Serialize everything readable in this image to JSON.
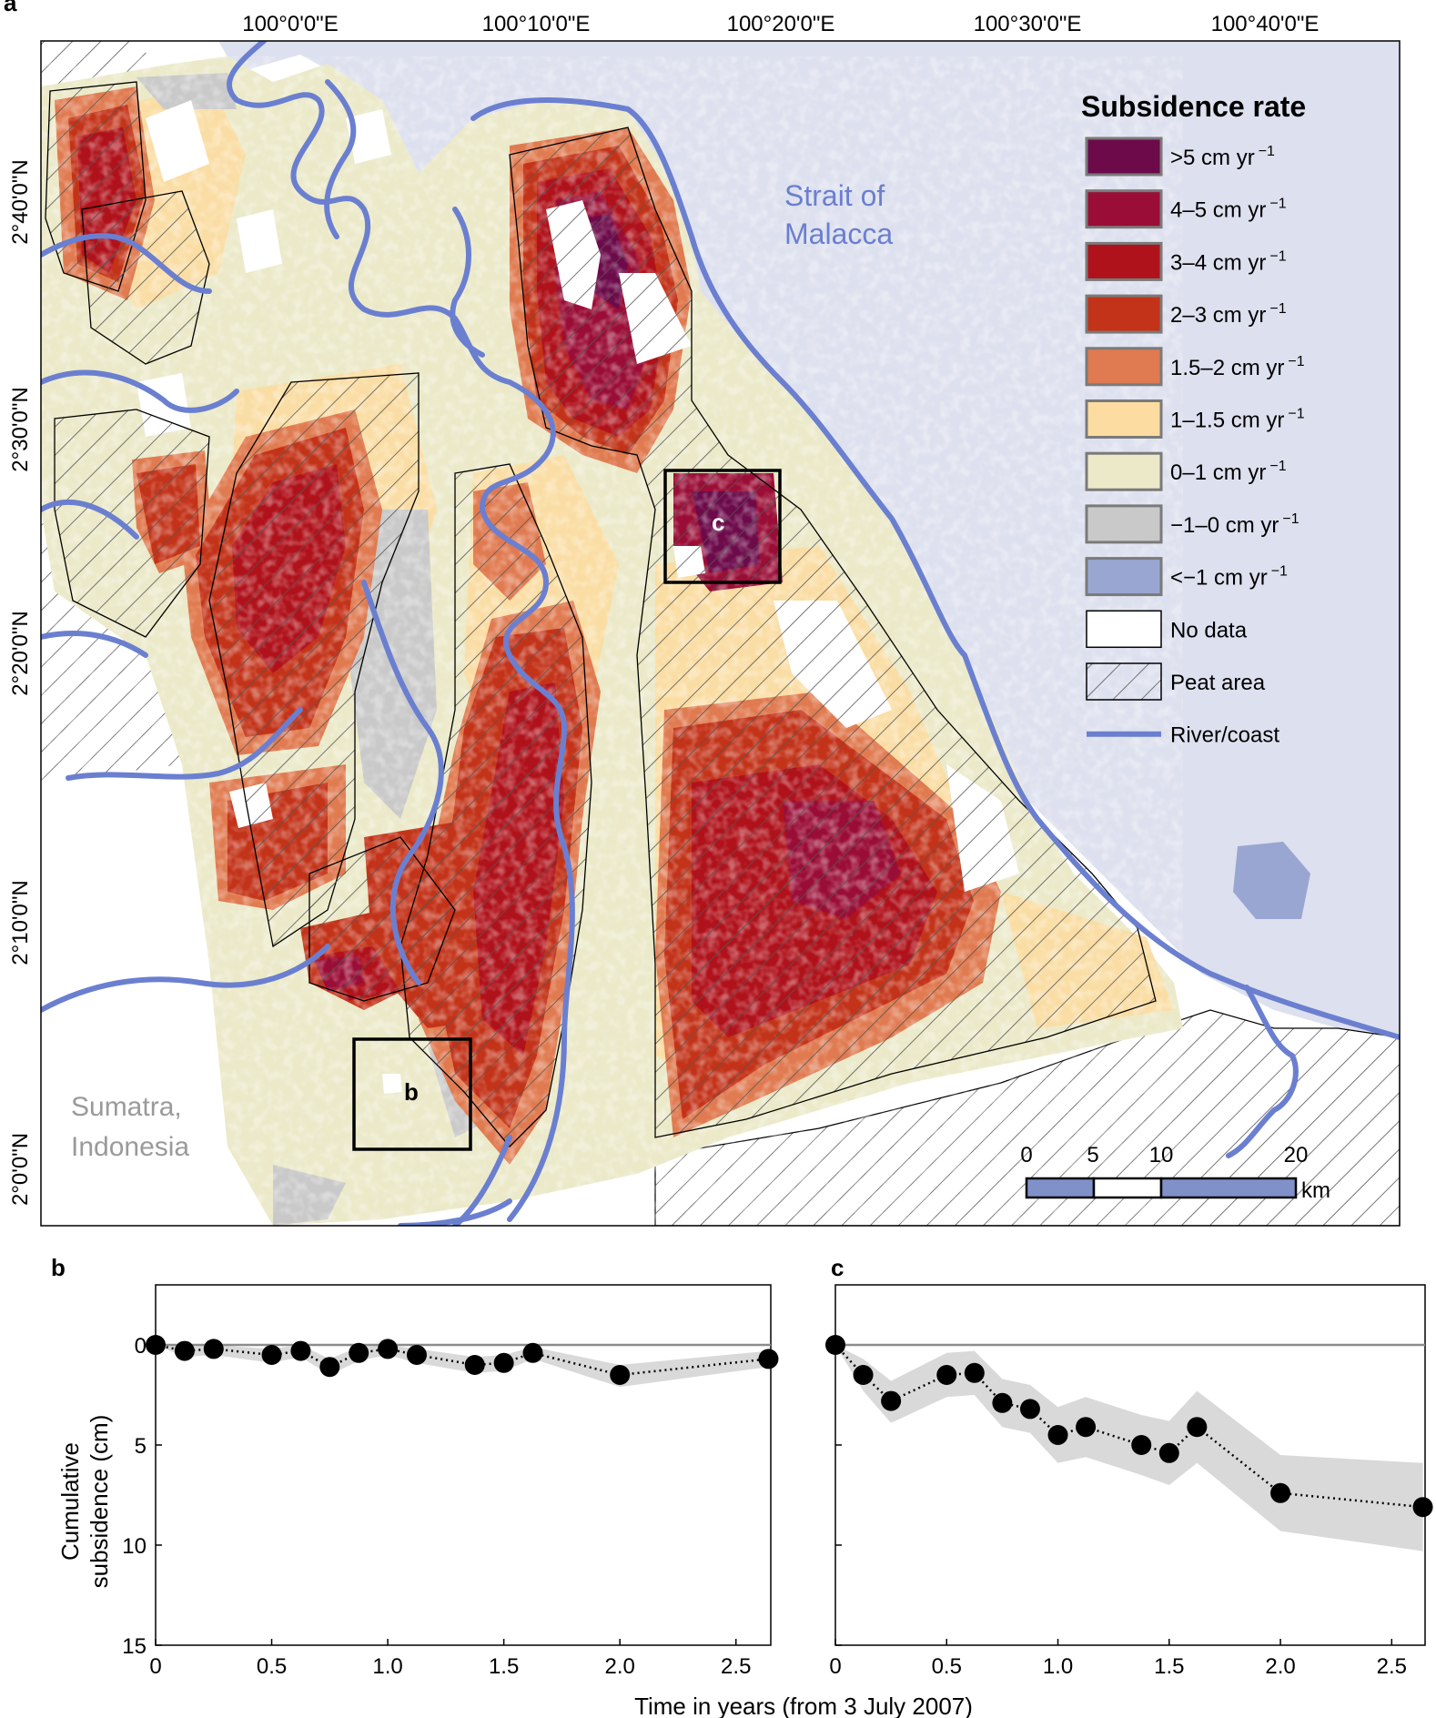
{
  "map": {
    "panel_letter": "a",
    "lon_ticks": [
      "100°0'0\"E",
      "100°10'0\"E",
      "100°20'0\"E",
      "100°30'0\"E",
      "100°40'0\"E"
    ],
    "lat_ticks": [
      "2°40'0\"N",
      "2°30'0\"N",
      "2°20'0\"N",
      "2°10'0\"N",
      "2°0'0\"N"
    ],
    "sea_label_1": "Strait of",
    "sea_label_2": "Malacca",
    "land_label_1": "Sumatra,",
    "land_label_2": "Indonesia",
    "box_b_label": "b",
    "box_c_label": "c",
    "scale_ticks": [
      "0",
      "5",
      "10",
      "20"
    ],
    "scale_unit": "km",
    "colors": {
      "sea": "#dde0ee",
      "river": "#6b7fd0",
      "hatch": "#555555",
      "background": "#ffffff"
    }
  },
  "legend": {
    "title": "Subsidence rate",
    "items": [
      {
        "label": ">5 cm yr",
        "exp": "−1",
        "color": "#6c0a4a"
      },
      {
        "label": "4–5 cm yr",
        "exp": "−1",
        "color": "#9a0d36"
      },
      {
        "label": "3–4 cm yr",
        "exp": "−1",
        "color": "#b0121b"
      },
      {
        "label": "2–3 cm yr",
        "exp": "−1",
        "color": "#c33319"
      },
      {
        "label": "1.5–2 cm yr",
        "exp": "−1",
        "color": "#e07a50"
      },
      {
        "label": "1–1.5 cm yr",
        "exp": "−1",
        "color": "#fcdca0"
      },
      {
        "label": "0–1 cm yr",
        "exp": "−1",
        "color": "#ebe9c8"
      },
      {
        "label": "−1–0 cm yr",
        "exp": "−1",
        "color": "#c9c9c9"
      },
      {
        "label": "<−1 cm yr",
        "exp": "−1",
        "color": "#9aa6d2"
      },
      {
        "label": "No data",
        "exp": "",
        "color": "#ffffff"
      },
      {
        "label": "Peat area",
        "exp": "",
        "color": "hatch"
      },
      {
        "label": "River/coast",
        "exp": "",
        "color": "line"
      }
    ]
  },
  "chart_data": [
    {
      "panel": "b",
      "type": "line",
      "xlabel": "Time in years (from 3 July 2007)",
      "ylabel": "Cumulative subsidence (cm)",
      "xlim": [
        0,
        2.65
      ],
      "ylim": [
        15,
        -3
      ],
      "y_inverted": true,
      "xticks": [
        "0",
        "0.5",
        "1.0",
        "1.5",
        "2.0",
        "2.5"
      ],
      "yticks": [
        "0",
        "5",
        "10",
        "15"
      ],
      "x": [
        0,
        0.125,
        0.25,
        0.5,
        0.625,
        0.75,
        0.875,
        1.0,
        1.125,
        1.375,
        1.5,
        1.625,
        2.0,
        2.64
      ],
      "y": [
        0,
        0.3,
        0.2,
        0.5,
        0.3,
        1.1,
        0.4,
        0.2,
        0.5,
        1.0,
        0.9,
        0.4,
        1.5,
        0.7
      ],
      "band_low": [
        0,
        0.1,
        0.0,
        0.2,
        0.0,
        0.7,
        0.1,
        0.0,
        0.2,
        0.6,
        0.5,
        0.1,
        1.0,
        0.3
      ],
      "band_high": [
        0,
        0.6,
        0.5,
        0.9,
        0.6,
        1.5,
        0.8,
        0.5,
        0.9,
        1.4,
        1.3,
        0.7,
        2.1,
        1.1
      ]
    },
    {
      "panel": "c",
      "type": "line",
      "xlabel": "Time in years (from 3 July 2007)",
      "ylabel": "Cumulative subsidence (cm)",
      "xlim": [
        0,
        2.65
      ],
      "ylim": [
        15,
        -3
      ],
      "y_inverted": true,
      "xticks": [
        "0",
        "0.5",
        "1.0",
        "1.5",
        "2.0",
        "2.5"
      ],
      "yticks": [
        "0",
        "5",
        "10",
        "15"
      ],
      "x": [
        0,
        0.125,
        0.25,
        0.5,
        0.625,
        0.75,
        0.875,
        1.0,
        1.125,
        1.375,
        1.5,
        1.625,
        2.0,
        2.64
      ],
      "y": [
        0,
        1.5,
        2.8,
        1.5,
        1.4,
        2.9,
        3.2,
        4.5,
        4.1,
        5.0,
        5.4,
        4.1,
        7.4,
        8.1
      ],
      "band_low": [
        0,
        0.7,
        1.8,
        0.4,
        0.3,
        1.7,
        2.0,
        3.1,
        2.6,
        3.5,
        3.8,
        2.3,
        5.5,
        5.9
      ],
      "band_high": [
        0,
        2.3,
        3.9,
        2.6,
        2.5,
        4.1,
        4.4,
        5.9,
        5.6,
        6.5,
        7.0,
        5.9,
        9.3,
        10.3
      ]
    }
  ]
}
